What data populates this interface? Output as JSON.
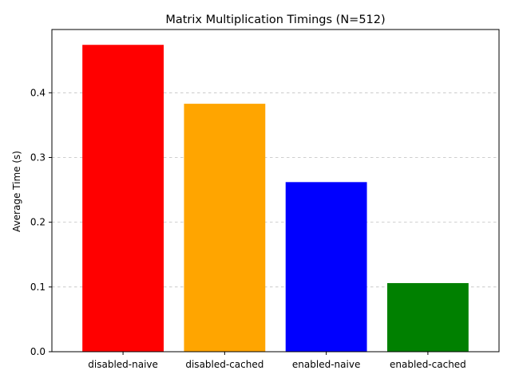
{
  "chart_data": {
    "type": "bar",
    "title": "Matrix Multiplication Timings (N=512)",
    "xlabel": "",
    "ylabel": "Average Time (s)",
    "categories": [
      "disabled-naive",
      "disabled-cached",
      "enabled-naive",
      "enabled-cached"
    ],
    "values": [
      0.474,
      0.383,
      0.262,
      0.106
    ],
    "colors": [
      "#ff0000",
      "#ffa500",
      "#0000ff",
      "#008000"
    ],
    "ylim": [
      0,
      0.4977
    ],
    "yticks": [
      0.0,
      0.1,
      0.2,
      0.3,
      0.4
    ],
    "ytick_labels": [
      "0.0",
      "0.1",
      "0.2",
      "0.3",
      "0.4"
    ],
    "grid": {
      "axis": "y",
      "style": "dashed",
      "color": "#c0c0c0"
    }
  }
}
